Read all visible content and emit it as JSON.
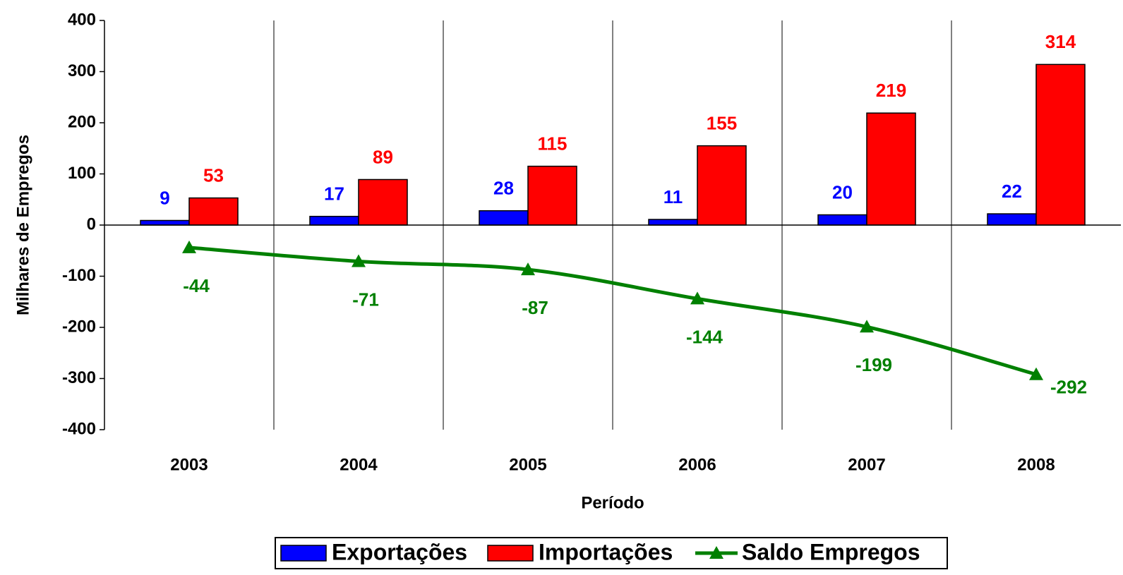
{
  "chart_data": {
    "type": "bar",
    "x_label": "Período",
    "y_label": "Milhares de Empregos",
    "categories": [
      "2003",
      "2004",
      "2005",
      "2006",
      "2007",
      "2008"
    ],
    "series": [
      {
        "name": "Exportações",
        "color": "#0000ff",
        "values": [
          9,
          17,
          28,
          11,
          20,
          22
        ]
      },
      {
        "name": "Importações",
        "color": "#ff0000",
        "values": [
          53,
          89,
          115,
          155,
          219,
          314
        ]
      },
      {
        "name": "Saldo Empregos",
        "color": "#008000",
        "type": "line",
        "values": [
          -44,
          -71,
          -87,
          -144,
          -199,
          -292
        ]
      }
    ],
    "ylim": [
      -400,
      400
    ],
    "yticks": [
      -400,
      -300,
      -200,
      -100,
      0,
      100,
      200,
      300,
      400
    ],
    "legend": "bottom"
  }
}
